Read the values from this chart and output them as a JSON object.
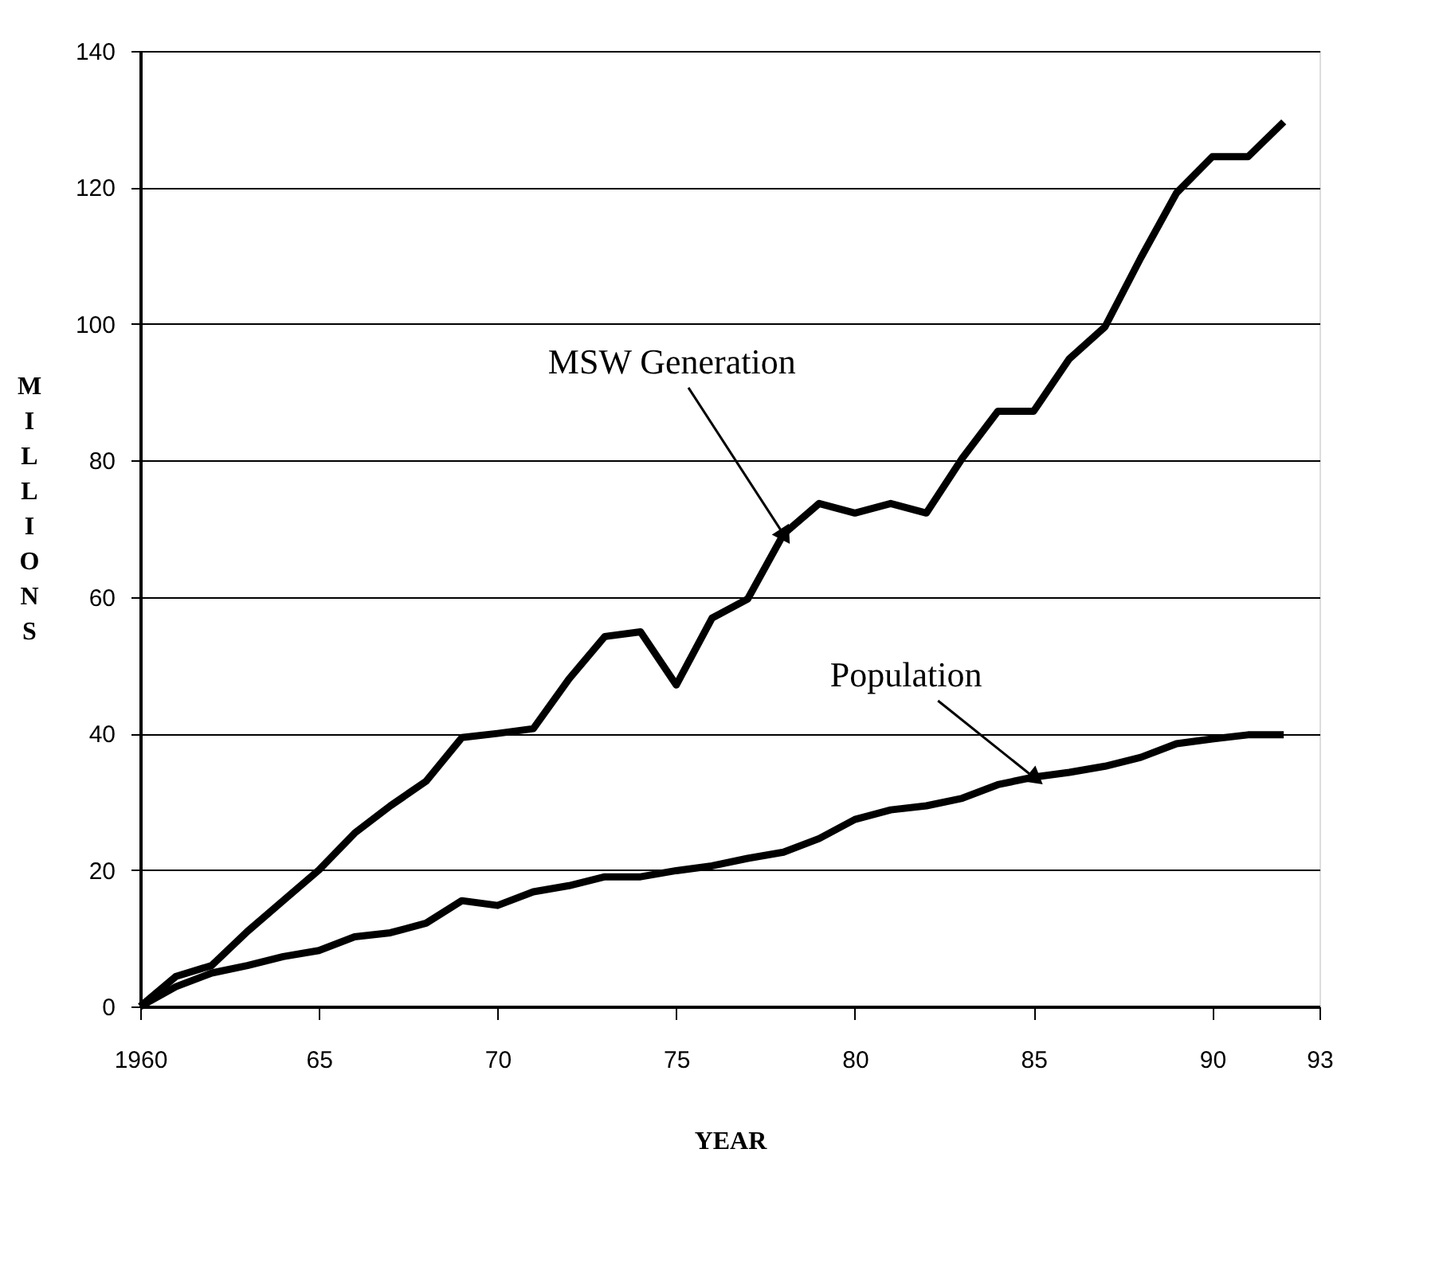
{
  "chart_data": {
    "type": "line",
    "xlabel": "YEAR",
    "ylabel": "MILLIONS",
    "x": [
      1960,
      1961,
      1962,
      1963,
      1964,
      1965,
      1966,
      1967,
      1968,
      1969,
      1970,
      1971,
      1972,
      1973,
      1974,
      1975,
      1976,
      1977,
      1978,
      1979,
      1980,
      1981,
      1982,
      1983,
      1984,
      1985,
      1986,
      1987,
      1988,
      1989,
      1990,
      1991,
      1992
    ],
    "series": [
      {
        "color": "#000000",
        "values": [
          0,
          4.4,
          6,
          11,
          15.5,
          20,
          25.4,
          29.4,
          33,
          39.4,
          40,
          40.7,
          48,
          54.2,
          54.9,
          47.1,
          56.9,
          59.7,
          69.2,
          73.7,
          72.3,
          73.7,
          72.3,
          80.3,
          87.2,
          87.2,
          94.9,
          99.6,
          109.7,
          119.2,
          124.5,
          124.5,
          129.6
        ]
      },
      {
        "color": "#000000",
        "values": [
          0,
          2.9,
          4.9,
          6,
          7.3,
          8.2,
          10.2,
          10.8,
          12.2,
          15.5,
          14.8,
          16.8,
          17.7,
          19,
          19,
          19.9,
          20.6,
          21.7,
          22.6,
          24.6,
          27.4,
          28.8,
          29.4,
          30.5,
          32.5,
          33.6,
          34.3,
          35.2,
          36.5,
          38.5,
          39.2,
          39.8,
          39.8
        ]
      }
    ],
    "annotations": [
      {
        "text": "MSW Generation",
        "x": 1978,
        "y": 69.2
      },
      {
        "text": "Population",
        "x": 1985,
        "y": 33.6
      }
    ],
    "xlim": [
      1960,
      1993
    ],
    "xticks": [
      {
        "value": 1960,
        "label": "1960"
      },
      {
        "value": 1965,
        "label": "65"
      },
      {
        "value": 1970,
        "label": "70"
      },
      {
        "value": 1975,
        "label": "75"
      },
      {
        "value": 1980,
        "label": "80"
      },
      {
        "value": 1985,
        "label": "85"
      },
      {
        "value": 1990,
        "label": "90"
      },
      {
        "value": 1993,
        "label": "93"
      }
    ],
    "ylim": [
      0,
      140
    ],
    "yticks": [
      0,
      20,
      40,
      60,
      80,
      100,
      120,
      140
    ],
    "grid": "y",
    "marker": "none",
    "line_style": "solid"
  }
}
